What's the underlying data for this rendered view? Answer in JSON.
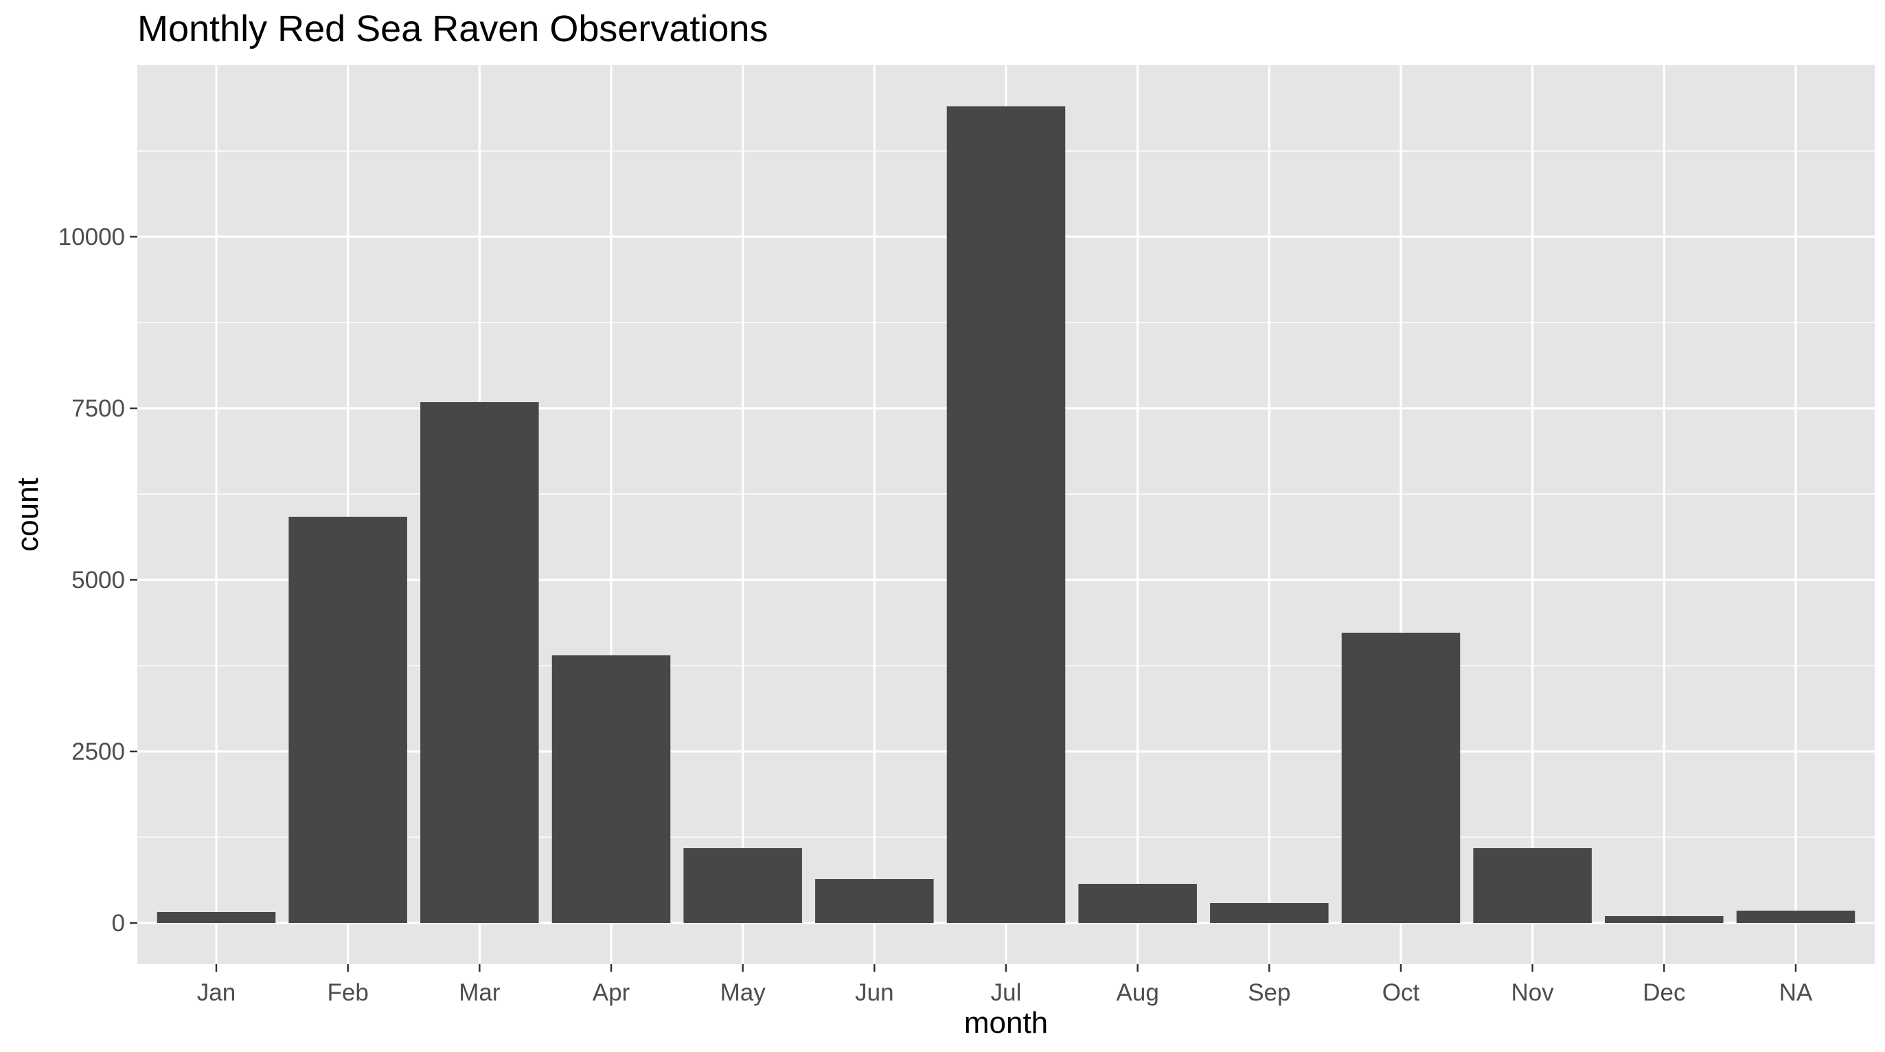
{
  "chart_data": {
    "type": "bar",
    "title": "Monthly Red Sea Raven Observations",
    "xlabel": "month",
    "ylabel": "count",
    "categories": [
      "Jan",
      "Feb",
      "Mar",
      "Apr",
      "May",
      "Jun",
      "Jul",
      "Aug",
      "Sep",
      "Oct",
      "Nov",
      "Dec",
      "NA"
    ],
    "values": [
      160,
      5920,
      7590,
      3900,
      1090,
      640,
      11900,
      570,
      290,
      4230,
      1090,
      100,
      180
    ],
    "ylim": [
      -600,
      12500
    ],
    "yticks": [
      0,
      2500,
      5000,
      7500,
      10000
    ],
    "ytick_labels": [
      "0",
      "2500",
      "5000",
      "7500",
      "10000"
    ],
    "grid": true,
    "legend": "none",
    "colors": {
      "bar": "#474747",
      "panel": "#e5e5e5",
      "grid": "#ffffff"
    }
  }
}
